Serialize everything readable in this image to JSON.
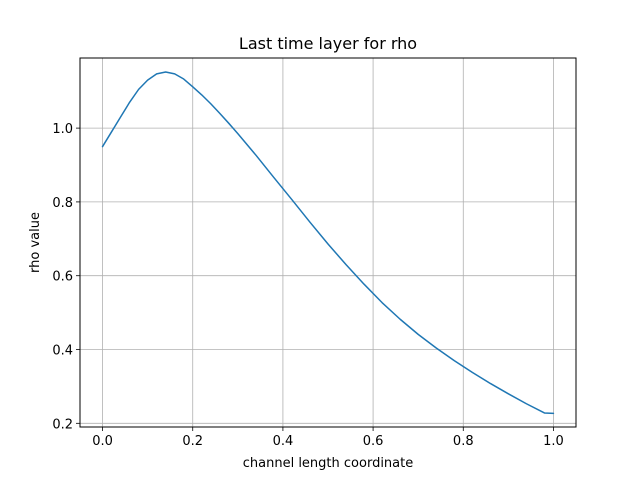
{
  "chart_data": {
    "type": "line",
    "title": "Last time layer for rho",
    "xlabel": "channel length coordinate",
    "ylabel": "rho value",
    "xlim": [
      -0.05,
      1.05
    ],
    "ylim": [
      0.19,
      1.19
    ],
    "xticks": [
      0.0,
      0.2,
      0.4,
      0.6,
      0.8,
      1.0
    ],
    "xtick_labels": [
      "0.0",
      "0.2",
      "0.4",
      "0.6",
      "0.8",
      "1.0"
    ],
    "yticks": [
      0.2,
      0.4,
      0.6,
      0.8,
      1.0
    ],
    "ytick_labels": [
      "0.2",
      "0.4",
      "0.6",
      "0.8",
      "1.0"
    ],
    "grid": true,
    "series": [
      {
        "color": "#1f77b4",
        "x": [
          0.0,
          0.02,
          0.04,
          0.06,
          0.08,
          0.1,
          0.12,
          0.14,
          0.16,
          0.18,
          0.2,
          0.22,
          0.24,
          0.26,
          0.28,
          0.3,
          0.34,
          0.38,
          0.42,
          0.46,
          0.5,
          0.54,
          0.58,
          0.62,
          0.66,
          0.7,
          0.74,
          0.78,
          0.82,
          0.86,
          0.9,
          0.94,
          0.98,
          1.0
        ],
        "y": [
          0.95,
          0.99,
          1.03,
          1.07,
          1.105,
          1.13,
          1.147,
          1.152,
          1.147,
          1.133,
          1.112,
          1.09,
          1.066,
          1.04,
          1.013,
          0.985,
          0.927,
          0.866,
          0.806,
          0.745,
          0.686,
          0.63,
          0.577,
          0.527,
          0.482,
          0.441,
          0.404,
          0.37,
          0.338,
          0.308,
          0.28,
          0.253,
          0.228,
          0.227
        ]
      }
    ]
  }
}
